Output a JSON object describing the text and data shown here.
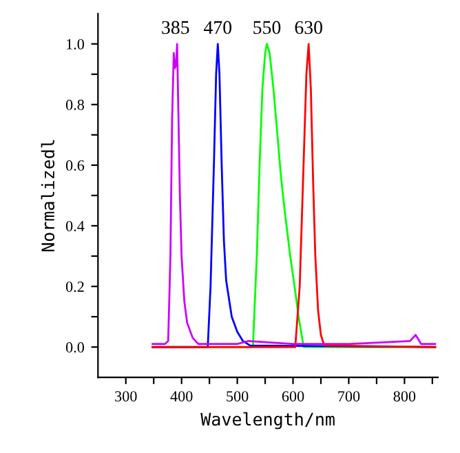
{
  "chart_data": {
    "type": "line",
    "xlabel": "Wavelength/nm",
    "ylabel": "Normalizedl",
    "xlim": [
      250,
      860
    ],
    "ylim": [
      -0.1,
      1.1
    ],
    "xticks": [
      300,
      400,
      500,
      600,
      700,
      800,
      {
        "value": 350,
        "label": null
      },
      {
        "value": 450,
        "label": null
      },
      {
        "value": 550,
        "label": null
      },
      {
        "value": 650,
        "label": null
      },
      {
        "value": 750,
        "label": null
      },
      {
        "value": 850,
        "label": null
      }
    ],
    "yticks": [
      {
        "value": 0.0,
        "label": "0.0"
      },
      {
        "value": 0.2,
        "label": "0.2"
      },
      {
        "value": 0.4,
        "label": "0.4"
      },
      {
        "value": 0.6,
        "label": "0.6"
      },
      {
        "value": 0.8,
        "label": "0.8"
      },
      {
        "value": 1.0,
        "label": "1.0"
      },
      {
        "value": 0.1,
        "label": null
      },
      {
        "value": 0.3,
        "label": null
      },
      {
        "value": 0.5,
        "label": null
      },
      {
        "value": 0.7,
        "label": null
      },
      {
        "value": 0.9,
        "label": null
      }
    ],
    "grid": false,
    "legend": false,
    "series": [
      {
        "color": "#00ff00",
        "x": [
          348,
          528,
          535,
          540,
          545,
          550,
          553,
          558,
          565,
          572,
          578,
          585,
          595,
          602,
          610,
          619,
          855
        ],
        "values": [
          0,
          0,
          0.3,
          0.6,
          0.85,
          0.97,
          1.0,
          0.97,
          0.85,
          0.7,
          0.57,
          0.45,
          0.3,
          0.21,
          0.1,
          0,
          0
        ]
      },
      {
        "color": "#0000ff",
        "x": [
          348,
          447,
          452,
          458,
          462,
          465,
          468,
          472,
          476,
          480,
          490,
          500,
          510,
          523,
          855
        ],
        "values": [
          0,
          0,
          0.2,
          0.6,
          0.9,
          1.0,
          0.9,
          0.6,
          0.35,
          0.22,
          0.1,
          0.05,
          0.02,
          0.005,
          0
        ]
      },
      {
        "color": "#ff0000",
        "x": [
          348,
          604,
          612,
          618,
          624,
          628,
          632,
          636,
          640,
          645,
          650,
          656,
          855
        ],
        "values": [
          0,
          0,
          0.2,
          0.55,
          0.9,
          1.0,
          0.85,
          0.55,
          0.3,
          0.12,
          0.04,
          0.005,
          0
        ]
      },
      {
        "color": "#cc00ff",
        "x": [
          348,
          370,
          376,
          380,
          383,
          386,
          388,
          390,
          392,
          394,
          397,
          400,
          405,
          410,
          420,
          430,
          500,
          520,
          600,
          700,
          810,
          820,
          830,
          855
        ],
        "values": [
          0.01,
          0.01,
          0.02,
          0.3,
          0.75,
          0.97,
          0.92,
          0.93,
          1.0,
          0.8,
          0.5,
          0.3,
          0.15,
          0.08,
          0.03,
          0.01,
          0.01,
          0.02,
          0.01,
          0.01,
          0.02,
          0.04,
          0.01,
          0.01
        ]
      }
    ],
    "annotations": [
      {
        "text": "385",
        "x": 389,
        "y": 1.02
      },
      {
        "text": "470",
        "x": 465,
        "y": 1.02
      },
      {
        "text": "550",
        "x": 553,
        "y": 1.02
      },
      {
        "text": "630",
        "x": 628,
        "y": 1.02
      }
    ]
  }
}
